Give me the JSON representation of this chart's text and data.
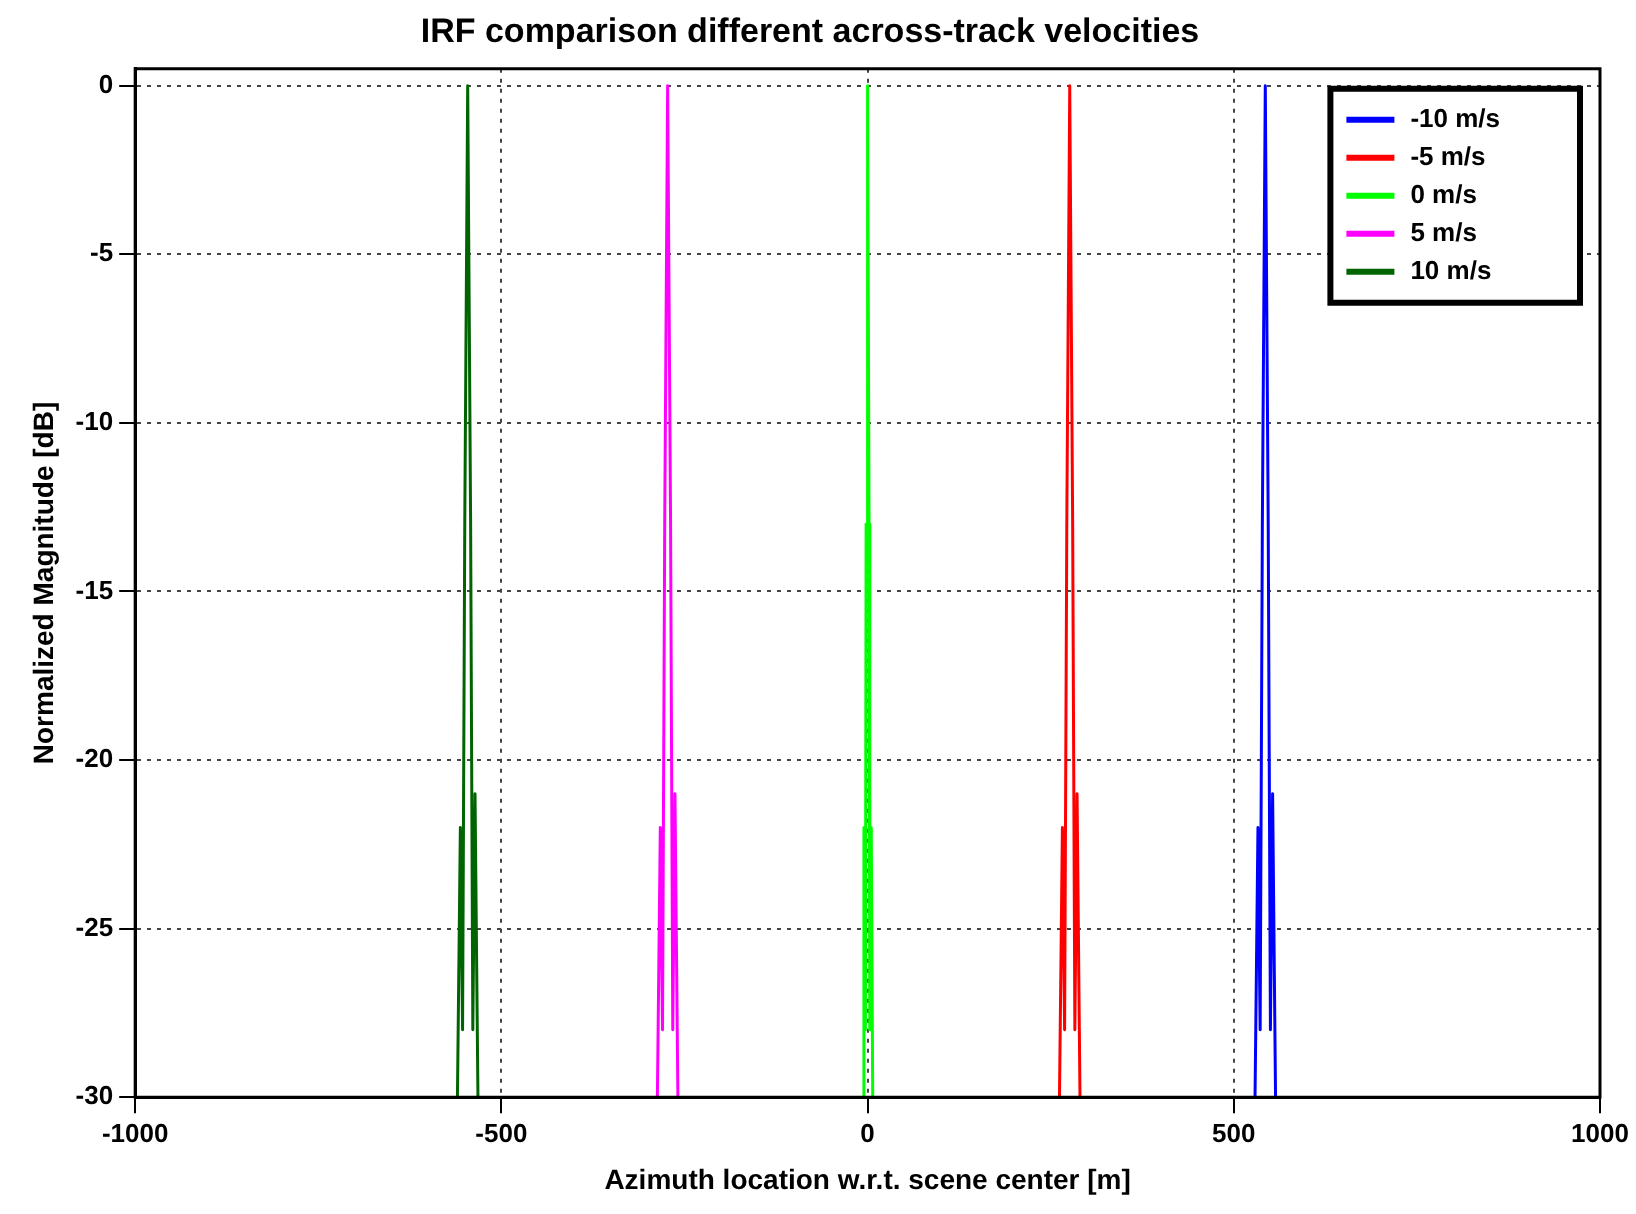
{
  "chart_data": {
    "type": "line",
    "title": "IRF comparison different across-track velocities",
    "xlabel": "Azimuth location w.r.t. scene center [m]",
    "ylabel": "Normalized Magnitude [dB]",
    "xlim": [
      -1000,
      1000
    ],
    "xticks": [
      -1000,
      -500,
      0,
      500,
      1000
    ],
    "ylim": [
      -30,
      0.5
    ],
    "yticks": [
      -30,
      -25,
      -20,
      -15,
      -10,
      -5,
      0
    ],
    "grid": true,
    "legend": "top right",
    "marker": "none",
    "line_style": "solid",
    "series": [
      {
        "name": "-10 m/s",
        "color": "#0000ff",
        "x": [
          529,
          533,
          536,
          539,
          543,
          547,
          550,
          553,
          557
        ],
        "values": [
          -30,
          -22,
          -28,
          -13,
          0,
          -13,
          -28,
          -21,
          -30
        ]
      },
      {
        "name": "-5 m/s",
        "color": "#ff0000",
        "x": [
          262,
          266,
          269,
          272,
          276,
          280,
          283,
          286,
          290
        ],
        "values": [
          -30,
          -22,
          -28,
          -13,
          0,
          -13,
          -28,
          -21,
          -30
        ]
      },
      {
        "name": "0 m/s",
        "color": "#00ff00",
        "x": [
          -7,
          -5,
          -3,
          -2,
          0,
          2,
          3,
          5,
          7
        ],
        "values": [
          -30,
          -22,
          -28,
          -13,
          0,
          -13,
          -28,
          -22,
          -30
        ]
      },
      {
        "name": "5 m/s",
        "color": "#ff00ff",
        "x": [
          -287,
          -283,
          -280,
          -277,
          -273,
          -269,
          -266,
          -263,
          -259
        ],
        "values": [
          -30,
          -22,
          -28,
          -13,
          0,
          -13,
          -28,
          -21,
          -30
        ]
      },
      {
        "name": "10 m/s",
        "color": "#006400",
        "x": [
          -560,
          -556,
          -553,
          -550,
          -546,
          -542,
          -539,
          -536,
          -532
        ],
        "values": [
          -30,
          -22,
          -28,
          -13,
          0,
          -13,
          -28,
          -21,
          -30
        ]
      }
    ]
  }
}
